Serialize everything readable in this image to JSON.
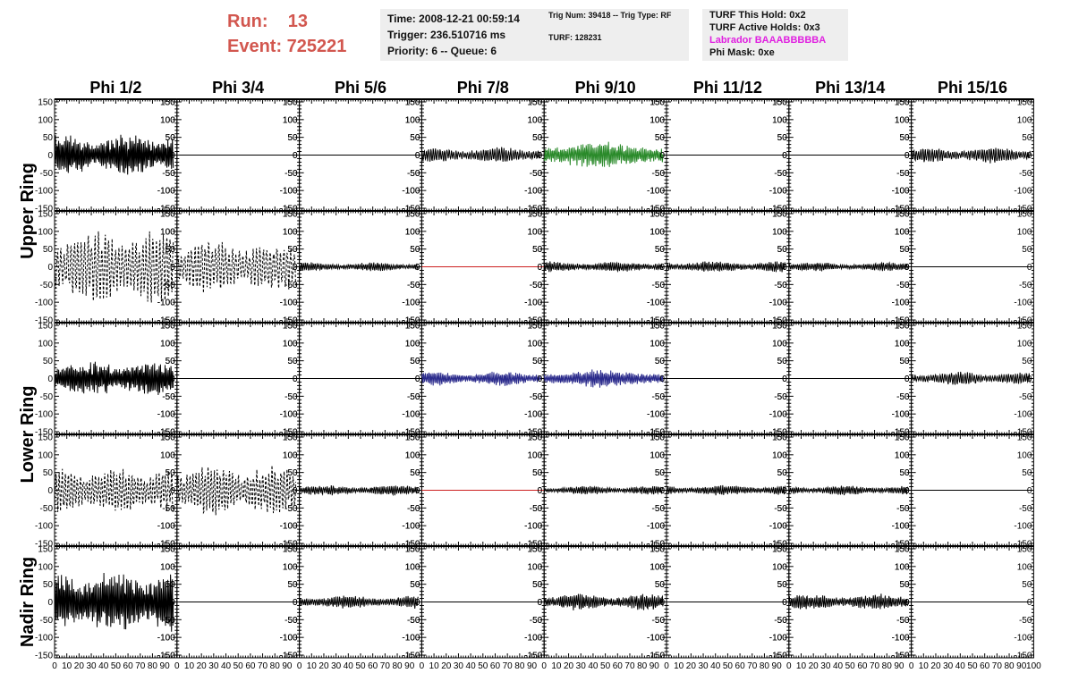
{
  "header": {
    "run_label": "Run:    13",
    "event_label": "Event: 725221",
    "time": "Time: 2008-12-21 00:59:14",
    "trigger": "Trigger: 236.510716 ms",
    "priority": "Priority: 6 -- Queue: 6",
    "trig_num": "Trig Num: 39418 -- Trig Type: RF",
    "turf": "TURF: 128231",
    "turf_this_hold": "TURF This Hold: 0x2",
    "turf_active_holds": "TURF Active Holds: 0x3",
    "labrador": "Labrador BAAABBBBBA",
    "phi_mask": "Phi Mask: 0xe"
  },
  "colors": {
    "run_text": "#d2574f",
    "labrador_text": "#e020e0",
    "info_box_bg": "#eeeeee",
    "trace_default": "#000000",
    "trace_green": "#2a8a2a",
    "trace_blue": "#2b2b8c",
    "trace_red_flat": "#cc2020"
  },
  "chart_data": {
    "type": "line",
    "columns": [
      "Phi 1/2",
      "Phi 3/4",
      "Phi 5/6",
      "Phi 7/8",
      "Phi 9/10",
      "Phi 11/12",
      "Phi 13/14",
      "Phi 15/16"
    ],
    "row_labels": [
      {
        "label": "Upper Ring",
        "rows": [
          0,
          1
        ]
      },
      {
        "label": "Lower Ring",
        "rows": [
          2,
          3
        ]
      },
      {
        "label": "Nadir Ring",
        "rows": [
          4
        ]
      }
    ],
    "xlim": [
      0,
      100
    ],
    "ylim": [
      -150,
      150
    ],
    "x_ticks": [
      "0",
      "10",
      "20",
      "30",
      "40",
      "50",
      "60",
      "70",
      "80",
      "90",
      "100"
    ],
    "y_ticks": [
      "-150",
      "-100",
      "-50",
      "0",
      "50",
      "100",
      "150"
    ],
    "trace_x_range": [
      0,
      97
    ],
    "grid": false,
    "panels": [
      [
        {
          "amp": 55,
          "style": "solid",
          "color": "black",
          "env": "bumpy",
          "freq": 0.9
        },
        {
          "amp": 0,
          "style": "solid",
          "color": "black"
        },
        {
          "amp": 0,
          "style": "solid",
          "color": "black"
        },
        {
          "amp": 22,
          "style": "solid",
          "color": "black",
          "env": "flat",
          "freq": 0.6
        },
        {
          "amp": 38,
          "style": "solid",
          "color": "green",
          "env": "center",
          "freq": 0.8
        },
        {
          "amp": 0,
          "style": "solid",
          "color": "black"
        },
        {
          "amp": 0,
          "style": "solid",
          "color": "black"
        },
        {
          "amp": 22,
          "style": "solid",
          "color": "black",
          "env": "flat",
          "freq": 0.6
        }
      ],
      [
        {
          "amp": 95,
          "style": "dashed",
          "color": "black",
          "env": "bumpy",
          "freq": 0.4
        },
        {
          "amp": 70,
          "style": "dashed",
          "color": "black",
          "env": "bumpy",
          "freq": 0.4
        },
        {
          "amp": 12,
          "style": "solid",
          "color": "black",
          "env": "flat",
          "freq": 0.7
        },
        {
          "amp": 0,
          "style": "solid",
          "color": "red"
        },
        {
          "amp": 15,
          "style": "solid",
          "color": "black",
          "env": "flat",
          "freq": 0.7
        },
        {
          "amp": 15,
          "style": "solid",
          "color": "black",
          "env": "flat",
          "freq": 0.7
        },
        {
          "amp": 12,
          "style": "solid",
          "color": "black",
          "env": "flat",
          "freq": 0.7
        },
        {
          "amp": 0,
          "style": "solid",
          "color": "black"
        }
      ],
      [
        {
          "amp": 45,
          "style": "solid",
          "color": "black",
          "env": "bumpy",
          "freq": 0.9
        },
        {
          "amp": 0,
          "style": "solid",
          "color": "black"
        },
        {
          "amp": 0,
          "style": "solid",
          "color": "black"
        },
        {
          "amp": 20,
          "style": "solid",
          "color": "blue",
          "env": "flat",
          "freq": 0.8
        },
        {
          "amp": 24,
          "style": "solid",
          "color": "blue",
          "env": "center",
          "freq": 0.8
        },
        {
          "amp": 0,
          "style": "solid",
          "color": "black"
        },
        {
          "amp": 0,
          "style": "solid",
          "color": "black"
        },
        {
          "amp": 18,
          "style": "solid",
          "color": "black",
          "env": "flat",
          "freq": 0.6
        }
      ],
      [
        {
          "amp": 60,
          "style": "dashed",
          "color": "black",
          "env": "bumpy",
          "freq": 0.45
        },
        {
          "amp": 65,
          "style": "dashed",
          "color": "black",
          "env": "bumpy",
          "freq": 0.45
        },
        {
          "amp": 14,
          "style": "solid",
          "color": "black",
          "env": "flat",
          "freq": 0.7
        },
        {
          "amp": 0,
          "style": "solid",
          "color": "red"
        },
        {
          "amp": 12,
          "style": "solid",
          "color": "black",
          "env": "flat",
          "freq": 0.7
        },
        {
          "amp": 14,
          "style": "solid",
          "color": "black",
          "env": "flat",
          "freq": 0.7
        },
        {
          "amp": 13,
          "style": "solid",
          "color": "black",
          "env": "flat",
          "freq": 0.7
        },
        {
          "amp": 0,
          "style": "solid",
          "color": "black"
        }
      ],
      [
        {
          "amp": 80,
          "style": "solid",
          "color": "black",
          "env": "bumpy",
          "freq": 0.9
        },
        {
          "amp": 0,
          "style": "solid",
          "color": "black"
        },
        {
          "amp": 18,
          "style": "solid",
          "color": "black",
          "env": "flat",
          "freq": 0.7
        },
        {
          "amp": 0,
          "style": "solid",
          "color": "black"
        },
        {
          "amp": 22,
          "style": "solid",
          "color": "black",
          "env": "flat",
          "freq": 0.7
        },
        {
          "amp": 0,
          "style": "solid",
          "color": "black"
        },
        {
          "amp": 22,
          "style": "solid",
          "color": "black",
          "env": "flat",
          "freq": 0.7
        },
        {
          "amp": 0,
          "style": "solid",
          "color": "black"
        }
      ]
    ]
  }
}
